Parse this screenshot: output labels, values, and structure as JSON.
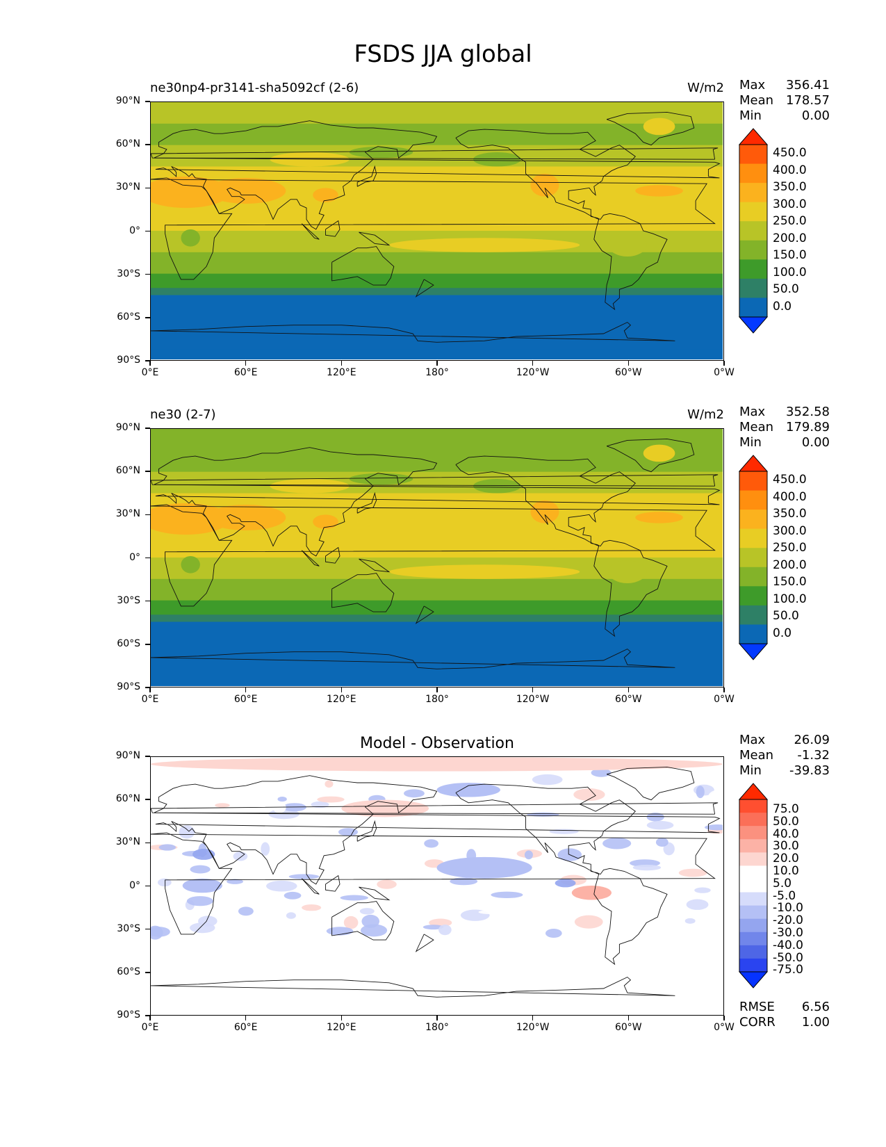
{
  "figure": {
    "title": "FSDS JJA global"
  },
  "axes": {
    "y_labels": [
      "90°N",
      "60°N",
      "30°N",
      "0°",
      "30°S",
      "60°S",
      "90°S"
    ],
    "x_labels": [
      "0°E",
      "60°E",
      "120°E",
      "180°",
      "120°W",
      "60°W",
      "0°W"
    ]
  },
  "panels": [
    {
      "title": "ne30np4-pr3141-sha5092cf (2-6)",
      "units": "W/m2",
      "stats": [
        {
          "label": "Max",
          "value": "356.41"
        },
        {
          "label": "Mean",
          "value": "178.57"
        },
        {
          "label": "Min",
          "value": "0.00"
        }
      ],
      "colorbar_labels": [
        "450.0",
        "400.0",
        "350.0",
        "300.0",
        "250.0",
        "200.0",
        "150.0",
        "100.0",
        "50.0",
        "0.0"
      ]
    },
    {
      "title": "ne30 (2-7)",
      "units": "W/m2",
      "stats": [
        {
          "label": "Max",
          "value": "352.58"
        },
        {
          "label": "Mean",
          "value": "179.89"
        },
        {
          "label": "Min",
          "value": "0.00"
        }
      ],
      "colorbar_labels": [
        "450.0",
        "400.0",
        "350.0",
        "300.0",
        "250.0",
        "200.0",
        "150.0",
        "100.0",
        "50.0",
        "0.0"
      ]
    },
    {
      "title": "Model - Observation",
      "units": "",
      "stats": [
        {
          "label": "Max",
          "value": "26.09"
        },
        {
          "label": "Mean",
          "value": "-1.32"
        },
        {
          "label": "Min",
          "value": "-39.83"
        }
      ],
      "colorbar_labels": [
        "75.0",
        "50.0",
        "40.0",
        "30.0",
        "20.0",
        "10.0",
        "5.0",
        "-5.0",
        "-10.0",
        "-20.0",
        "-30.0",
        "-40.0",
        "-50.0",
        "-75.0"
      ],
      "footer": [
        {
          "label": "RMSE",
          "value": "6.56"
        },
        {
          "label": "CORR",
          "value": "1.00"
        }
      ]
    }
  ],
  "colors": {
    "abs_scale": [
      "#ff2a00",
      "#ff5a0a",
      "#ff8f0f",
      "#fbb21e",
      "#e8cd24",
      "#b8c427",
      "#83b329",
      "#3e9b2a",
      "#2e8066",
      "#0b68b5",
      "#0339ff"
    ],
    "diff_scale": [
      "#ff2a00",
      "#ff4f30",
      "#fb6f58",
      "#fb917f",
      "#fcb2a6",
      "#fdd6d0",
      "#ffffff",
      "#ffffff",
      "#d6dcfb",
      "#b4c0f5",
      "#94a5ef",
      "#7186ea",
      "#4e66e6",
      "#2a44f0",
      "#0633ff"
    ]
  },
  "chart_data": [
    {
      "type": "heatmap",
      "title": "ne30np4-pr3141-sha5092cf (2-6)",
      "variable": "FSDS",
      "season": "JJA",
      "units": "W/m2",
      "xlim": [
        0,
        360
      ],
      "ylim": [
        -90,
        90
      ],
      "levels": [
        0,
        50,
        100,
        150,
        200,
        250,
        300,
        350,
        400,
        450
      ],
      "zonal_band_values": [
        {
          "lat_range": [
            75,
            90
          ],
          "value": 210
        },
        {
          "lat_range": [
            60,
            75
          ],
          "value": 185
        },
        {
          "lat_range": [
            45,
            60
          ],
          "value": 200
        },
        {
          "lat_range": [
            15,
            45
          ],
          "value": 290
        },
        {
          "lat_range": [
            0,
            15
          ],
          "value": 250
        },
        {
          "lat_range": [
            -15,
            0
          ],
          "value": 225
        },
        {
          "lat_range": [
            -30,
            -15
          ],
          "value": 180
        },
        {
          "lat_range": [
            -40,
            -30
          ],
          "value": 125
        },
        {
          "lat_range": [
            -45,
            -40
          ],
          "value": 80
        },
        {
          "lat_range": [
            -83,
            -45
          ],
          "value": 30
        },
        {
          "lat_range": [
            -90,
            -83
          ],
          "value": 0
        }
      ],
      "stats": {
        "max": 356.41,
        "mean": 178.57,
        "min": 0.0
      }
    },
    {
      "type": "heatmap",
      "title": "ne30 (2-7)",
      "variable": "FSDS",
      "season": "JJA",
      "units": "W/m2",
      "xlim": [
        0,
        360
      ],
      "ylim": [
        -90,
        90
      ],
      "levels": [
        0,
        50,
        100,
        150,
        200,
        250,
        300,
        350,
        400,
        450
      ],
      "zonal_band_values": [
        {
          "lat_range": [
            75,
            90
          ],
          "value": 180
        },
        {
          "lat_range": [
            60,
            75
          ],
          "value": 190
        },
        {
          "lat_range": [
            45,
            60
          ],
          "value": 205
        },
        {
          "lat_range": [
            15,
            45
          ],
          "value": 285
        },
        {
          "lat_range": [
            0,
            15
          ],
          "value": 255
        },
        {
          "lat_range": [
            -15,
            0
          ],
          "value": 230
        },
        {
          "lat_range": [
            -30,
            -15
          ],
          "value": 185
        },
        {
          "lat_range": [
            -40,
            -30
          ],
          "value": 125
        },
        {
          "lat_range": [
            -45,
            -40
          ],
          "value": 80
        },
        {
          "lat_range": [
            -83,
            -45
          ],
          "value": 30
        },
        {
          "lat_range": [
            -90,
            -83
          ],
          "value": 0
        }
      ],
      "stats": {
        "max": 352.58,
        "mean": 179.89,
        "min": 0.0
      }
    },
    {
      "type": "heatmap",
      "title": "Model - Observation",
      "variable": "FSDS difference",
      "season": "JJA",
      "xlim": [
        0,
        360
      ],
      "ylim": [
        -90,
        90
      ],
      "levels": [
        -75,
        -50,
        -40,
        -30,
        -20,
        -10,
        -5,
        5,
        10,
        20,
        30,
        40,
        50,
        75
      ],
      "notable_anomalies": [
        {
          "lat_range": [
            80,
            90
          ],
          "lon_range": [
            0,
            360
          ],
          "value": 15
        },
        {
          "lat_range": [
            62,
            72
          ],
          "lon_range": [
            180,
            220
          ],
          "value": -20
        },
        {
          "lat_range": [
            48,
            60
          ],
          "lon_range": [
            120,
            175
          ],
          "value": 12
        },
        {
          "lat_range": [
            5,
            20
          ],
          "lon_range": [
            180,
            240
          ],
          "value": -20
        },
        {
          "lat_range": [
            -10,
            0
          ],
          "lon_range": [
            265,
            290
          ],
          "value": 20
        },
        {
          "lat_range": [
            -5,
            5
          ],
          "lon_range": [
            20,
            45
          ],
          "value": -15
        }
      ],
      "stats": {
        "max": 26.09,
        "mean": -1.32,
        "min": -39.83,
        "rmse": 6.56,
        "corr": 1.0
      }
    }
  ]
}
